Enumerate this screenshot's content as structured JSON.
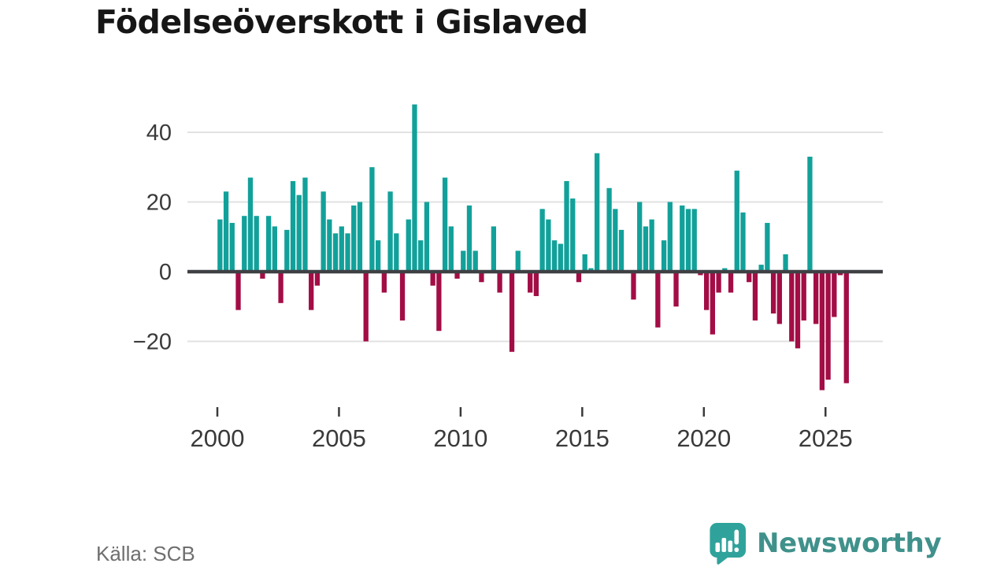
{
  "page": {
    "title": "Födelseöverskott i Gislaved",
    "source": "Källa: SCB"
  },
  "brand": {
    "name": "Newsworthy",
    "icon": "newsworthy-speech-bubble-chart-icon",
    "bubble_color": "#2fa39b",
    "text_color": "#40918b"
  },
  "colors": {
    "positive_bar": "#12a19a",
    "negative_bar": "#a30d45",
    "zero_axis": "#3e4044",
    "gridline": "#e2e2e2",
    "axis_text": "#3a3a3a",
    "source_text": "#6f6f6f",
    "title_text": "#161616",
    "background": "#ffffff"
  },
  "chart_data": {
    "type": "bar",
    "title": "Födelseöverskott i Gislaved",
    "x_start": "2000Q1",
    "points_per_year": 4,
    "x_tick_labels": [
      "2000",
      "2005",
      "2010",
      "2015",
      "2020",
      "2025"
    ],
    "y_ticks": [
      40,
      20,
      0,
      -20
    ],
    "ylim": [
      -36,
      50
    ],
    "grid": "horizontal",
    "legend": "none",
    "positive_color": "#12a19a",
    "negative_color": "#a30d45",
    "values": [
      15,
      23,
      14,
      -11,
      16,
      27,
      16,
      -2,
      16,
      13,
      -9,
      12,
      26,
      22,
      27,
      -11,
      -4,
      23,
      15,
      11,
      13,
      11,
      19,
      20,
      -20,
      30,
      9,
      -6,
      23,
      11,
      -14,
      15,
      48,
      9,
      20,
      -4,
      -17,
      27,
      13,
      -2,
      6,
      19,
      6,
      -3,
      0,
      13,
      -6,
      0,
      -23,
      6,
      0,
      -6,
      -7,
      18,
      15,
      9,
      8,
      26,
      21,
      -3,
      5,
      1,
      34,
      0,
      24,
      18,
      12,
      0,
      -8,
      20,
      13,
      15,
      -16,
      9,
      20,
      -10,
      19,
      18,
      18,
      -1,
      -11,
      -18,
      -6,
      1,
      -6,
      29,
      17,
      -3,
      -14,
      2,
      14,
      -12,
      -15,
      5,
      -20,
      -22,
      -14,
      33,
      -15,
      -34,
      -31,
      -13,
      -1,
      -32
    ]
  }
}
